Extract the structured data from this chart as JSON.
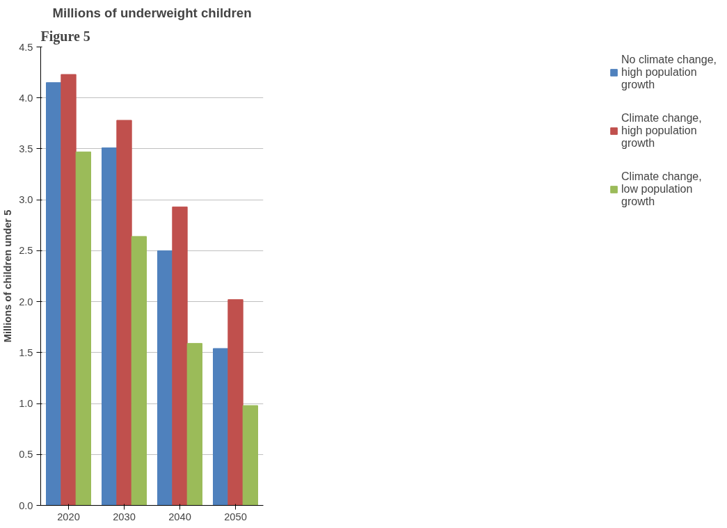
{
  "chart_data": {
    "type": "bar",
    "title": "Millions of underweight children",
    "ylabel": "Millions of children under 5",
    "annotations": [
      "Figure 5"
    ],
    "categories": [
      "2020",
      "2030",
      "2040",
      "2050"
    ],
    "series": [
      {
        "name": "No climate change, high population growth",
        "color": "#4f81bd",
        "values": [
          4.15,
          3.51,
          2.5,
          1.54
        ]
      },
      {
        "name": "Climate change, high population growth",
        "color": "#c0504d",
        "values": [
          4.23,
          3.78,
          2.93,
          2.02
        ]
      },
      {
        "name": "Climate change, low population growth",
        "color": "#9bbb59",
        "values": [
          3.47,
          2.64,
          1.59,
          0.98
        ]
      }
    ],
    "ylim": [
      0,
      4.5
    ],
    "yticks": [
      {
        "value": 0,
        "label": "0.0"
      },
      {
        "value": 0.5,
        "label": "0.5"
      },
      {
        "value": 1,
        "label": "1.0"
      },
      {
        "value": 1.5,
        "label": "1.5"
      },
      {
        "value": 2,
        "label": "2.0"
      },
      {
        "value": 2.5,
        "label": "2.5"
      },
      {
        "value": 3,
        "label": "3.0"
      },
      {
        "value": 3.5,
        "label": "3.5"
      },
      {
        "value": 4,
        "label": "4.0"
      },
      {
        "value": 4.5,
        "label": "4.5"
      }
    ],
    "grid": "y",
    "legend": "right"
  }
}
